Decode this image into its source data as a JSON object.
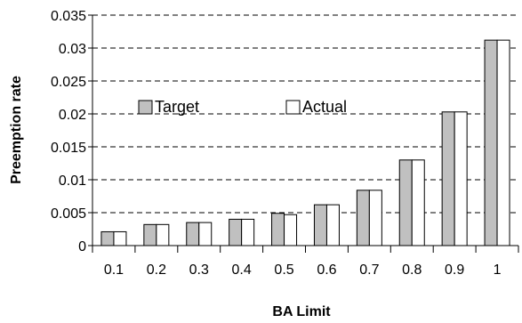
{
  "chart_data": {
    "type": "bar",
    "categories": [
      "0.1",
      "0.2",
      "0.3",
      "0.4",
      "0.5",
      "0.6",
      "0.7",
      "0.8",
      "0.9",
      "1"
    ],
    "series": [
      {
        "name": "Target",
        "values": [
          0.0021,
          0.0032,
          0.0035,
          0.004,
          0.0049,
          0.0062,
          0.0084,
          0.013,
          0.0203,
          0.0312
        ]
      },
      {
        "name": "Actual",
        "values": [
          0.0021,
          0.0032,
          0.0035,
          0.004,
          0.0047,
          0.0062,
          0.0084,
          0.013,
          0.0203,
          0.0312
        ]
      }
    ],
    "title": "",
    "xlabel": "BA Limit",
    "ylabel": "Preemption rate",
    "ylim": [
      0,
      0.035
    ],
    "yticks": [
      "0",
      "0.005",
      "0.01",
      "0.015",
      "0.02",
      "0.025",
      "0.03",
      "0.035"
    ],
    "grid": "horizontal dashed",
    "legend_position": "top-left",
    "colors": {
      "Target": "#c0c0c0",
      "Actual": "#ffffff",
      "outline": "#000000",
      "grid": "#000000"
    }
  }
}
